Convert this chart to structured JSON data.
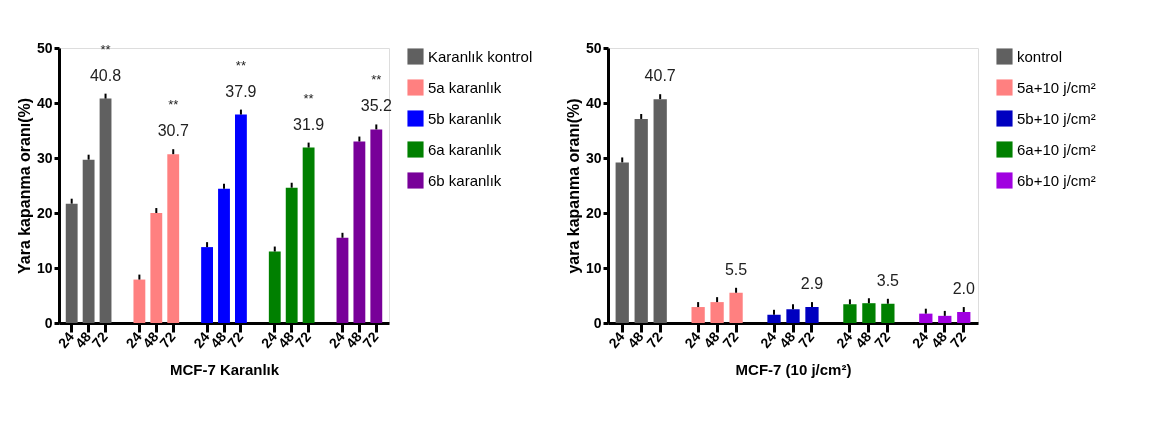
{
  "chart_data": [
    {
      "type": "bar",
      "xlabel": "MCF-7 Karanlık",
      "ylabel": "Yara kapanma oranı(%)",
      "categories": [
        "24",
        "48",
        "72",
        "24",
        "48",
        "72",
        "24",
        "48",
        "72",
        "24",
        "48",
        "72",
        "24",
        "48",
        "72"
      ],
      "ylim": [
        0,
        50
      ],
      "yticks": [
        0,
        10,
        20,
        30,
        40,
        50
      ],
      "grid": false,
      "legend": "top right",
      "series": [
        {
          "name": "Karanlık kontrol",
          "color": "#606060",
          "values": [
            21.7,
            29.7,
            40.8,
            null,
            null,
            null,
            null,
            null,
            null,
            null,
            null,
            null,
            null,
            null,
            null
          ],
          "errors": [
            0.9,
            0.9,
            0.9,
            null,
            null,
            null,
            null,
            null,
            null,
            null,
            null,
            null,
            null,
            null,
            null
          ],
          "value_labels": [
            null,
            null,
            "40.8",
            null,
            null,
            null,
            null,
            null,
            null,
            null,
            null,
            null,
            null,
            null,
            null
          ]
        },
        {
          "name": "5a karanlık",
          "color": "#ff8080",
          "values": [
            null,
            null,
            null,
            7.9,
            20.0,
            30.7,
            null,
            null,
            null,
            null,
            null,
            null,
            null,
            null,
            null
          ],
          "errors": [
            null,
            null,
            null,
            0.9,
            0.9,
            0.9,
            null,
            null,
            null,
            null,
            null,
            null,
            null,
            null,
            null
          ],
          "value_labels": [
            null,
            null,
            null,
            null,
            null,
            "30.7",
            null,
            null,
            null,
            null,
            null,
            null,
            null,
            null,
            null
          ]
        },
        {
          "name": "5b karanlık",
          "color": "#0000ff",
          "values": [
            null,
            null,
            null,
            null,
            null,
            null,
            13.8,
            24.4,
            37.9,
            null,
            null,
            null,
            null,
            null,
            null
          ],
          "errors": [
            null,
            null,
            null,
            null,
            null,
            null,
            0.9,
            0.9,
            0.9,
            null,
            null,
            null,
            null,
            null,
            null
          ],
          "value_labels": [
            null,
            null,
            null,
            null,
            null,
            null,
            null,
            null,
            "37.9",
            null,
            null,
            null,
            null,
            null,
            null
          ]
        },
        {
          "name": "6a karanlık",
          "color": "#008000",
          "values": [
            null,
            null,
            null,
            null,
            null,
            null,
            null,
            null,
            null,
            13.0,
            24.6,
            31.9,
            null,
            null,
            null
          ],
          "errors": [
            null,
            null,
            null,
            null,
            null,
            null,
            null,
            null,
            null,
            0.9,
            0.9,
            0.9,
            null,
            null,
            null
          ],
          "value_labels": [
            null,
            null,
            null,
            null,
            null,
            null,
            null,
            null,
            null,
            null,
            null,
            "31.9",
            null,
            null,
            null
          ]
        },
        {
          "name": "6b karanlık",
          "color": "#780099",
          "values": [
            null,
            null,
            null,
            null,
            null,
            null,
            null,
            null,
            null,
            null,
            null,
            null,
            15.5,
            33.0,
            35.2
          ],
          "errors": [
            null,
            null,
            null,
            null,
            null,
            null,
            null,
            null,
            null,
            null,
            null,
            null,
            0.9,
            0.9,
            0.9
          ],
          "value_labels": [
            null,
            null,
            null,
            null,
            null,
            null,
            null,
            null,
            null,
            null,
            null,
            null,
            null,
            null,
            "35.2"
          ]
        }
      ],
      "annotations": [
        "**",
        "**",
        "**",
        "**",
        "**"
      ]
    },
    {
      "type": "bar",
      "xlabel": "MCF-7 (10 j/cm²)",
      "ylabel": "yara kapanma oranı(%)",
      "categories": [
        "24",
        "48",
        "72",
        "24",
        "48",
        "72",
        "24",
        "48",
        "72",
        "24",
        "48",
        "72",
        "24",
        "48",
        "72"
      ],
      "ylim": [
        0,
        50
      ],
      "yticks": [
        0,
        10,
        20,
        30,
        40,
        50
      ],
      "grid": false,
      "legend": "top right",
      "series": [
        {
          "name": "kontrol",
          "color": "#606060",
          "values": [
            29.2,
            37.1,
            40.7,
            null,
            null,
            null,
            null,
            null,
            null,
            null,
            null,
            null,
            null,
            null,
            null
          ],
          "errors": [
            0.9,
            0.9,
            0.9,
            null,
            null,
            null,
            null,
            null,
            null,
            null,
            null,
            null,
            null,
            null,
            null
          ],
          "value_labels": [
            null,
            null,
            "40.7",
            null,
            null,
            null,
            null,
            null,
            null,
            null,
            null,
            null,
            null,
            null,
            null
          ]
        },
        {
          "name": "5a+10 j/cm²",
          "color": "#ff8080",
          "values": [
            null,
            null,
            null,
            2.9,
            3.8,
            5.5,
            null,
            null,
            null,
            null,
            null,
            null,
            null,
            null,
            null
          ],
          "errors": [
            null,
            null,
            null,
            0.9,
            0.9,
            0.9,
            null,
            null,
            null,
            null,
            null,
            null,
            null,
            null,
            null
          ],
          "value_labels": [
            null,
            null,
            null,
            null,
            null,
            "5.5",
            null,
            null,
            null,
            null,
            null,
            null,
            null,
            null,
            null
          ]
        },
        {
          "name": "5b+10 j/cm²",
          "color": "#0000c0",
          "values": [
            null,
            null,
            null,
            null,
            null,
            null,
            1.5,
            2.5,
            2.9,
            null,
            null,
            null,
            null,
            null,
            null
          ],
          "errors": [
            null,
            null,
            null,
            null,
            null,
            null,
            0.9,
            0.9,
            0.9,
            null,
            null,
            null,
            null,
            null,
            null
          ],
          "value_labels": [
            null,
            null,
            null,
            null,
            null,
            null,
            null,
            null,
            "2.9",
            null,
            null,
            null,
            null,
            null,
            null
          ]
        },
        {
          "name": "6a+10 j/cm²",
          "color": "#008000",
          "values": [
            null,
            null,
            null,
            null,
            null,
            null,
            null,
            null,
            null,
            3.4,
            3.6,
            3.5,
            null,
            null,
            null
          ],
          "errors": [
            null,
            null,
            null,
            null,
            null,
            null,
            null,
            null,
            null,
            0.9,
            0.9,
            0.9,
            null,
            null,
            null
          ],
          "value_labels": [
            null,
            null,
            null,
            null,
            null,
            null,
            null,
            null,
            null,
            null,
            null,
            "3.5",
            null,
            null,
            null
          ]
        },
        {
          "name": "6b+10 j/cm²",
          "color": "#a000e0",
          "values": [
            null,
            null,
            null,
            null,
            null,
            null,
            null,
            null,
            null,
            null,
            null,
            null,
            1.7,
            1.3,
            2.0
          ],
          "errors": [
            null,
            null,
            null,
            null,
            null,
            null,
            null,
            null,
            null,
            null,
            null,
            null,
            0.9,
            0.9,
            0.9
          ],
          "value_labels": [
            null,
            null,
            null,
            null,
            null,
            null,
            null,
            null,
            null,
            null,
            null,
            null,
            null,
            null,
            "2.0"
          ]
        }
      ]
    }
  ]
}
